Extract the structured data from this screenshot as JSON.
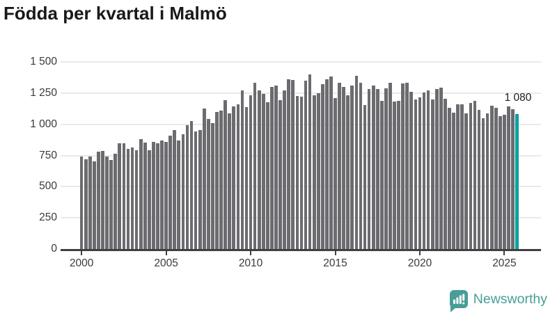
{
  "title": "Födda per kvartal i Malmö",
  "footer": {
    "brand": "Newsworthy",
    "logo_icon": "bar-chart-speech-bubble-icon"
  },
  "colors": {
    "bar": "#6b6b70",
    "highlight": "#00a3a1",
    "grid": "#e9e9e9",
    "axis": "#3f3f3f",
    "title_text": "#191919",
    "tick_label": "#3a3a3a",
    "brand_teal": "#489e97"
  },
  "chart_data": {
    "type": "bar",
    "title": "Födda per kvartal i Malmö",
    "xlabel": "",
    "ylabel": "",
    "ylim": [
      0,
      1500
    ],
    "grid": "horizontal",
    "legend": "none",
    "start_quarter": "2000Q1",
    "end_quarter": "2025Q4",
    "highlight_last": true,
    "last_value": 1080,
    "last_value_label": "1 080",
    "y_ticks": [
      1500,
      1250,
      1000,
      750,
      500,
      250,
      0
    ],
    "y_tick_labels": [
      "1 500",
      "1 250",
      "1 000",
      "750",
      "500",
      "250",
      "0"
    ],
    "x_tick_quarter_indices": [
      0,
      20,
      40,
      60,
      80,
      100
    ],
    "x_tick_labels": [
      "2000",
      "2005",
      "2010",
      "2015",
      "2020",
      "2025"
    ],
    "values": [
      740,
      720,
      740,
      700,
      780,
      785,
      740,
      715,
      765,
      850,
      845,
      805,
      815,
      790,
      880,
      855,
      790,
      860,
      850,
      870,
      860,
      910,
      955,
      870,
      920,
      990,
      1025,
      945,
      955,
      1125,
      1040,
      1010,
      1100,
      1110,
      1195,
      1085,
      1145,
      1160,
      1270,
      1135,
      1235,
      1335,
      1270,
      1245,
      1175,
      1300,
      1310,
      1195,
      1270,
      1360,
      1355,
      1225,
      1220,
      1350,
      1400,
      1235,
      1250,
      1320,
      1360,
      1385,
      1210,
      1330,
      1300,
      1230,
      1310,
      1390,
      1335,
      1155,
      1280,
      1310,
      1280,
      1185,
      1290,
      1330,
      1180,
      1190,
      1325,
      1330,
      1260,
      1197,
      1215,
      1256,
      1271,
      1197,
      1281,
      1294,
      1206,
      1132,
      1095,
      1160,
      1160,
      1085,
      1170,
      1190,
      1117,
      1048,
      1087,
      1151,
      1132,
      1067,
      1076,
      1145,
      1119,
      1080
    ]
  }
}
